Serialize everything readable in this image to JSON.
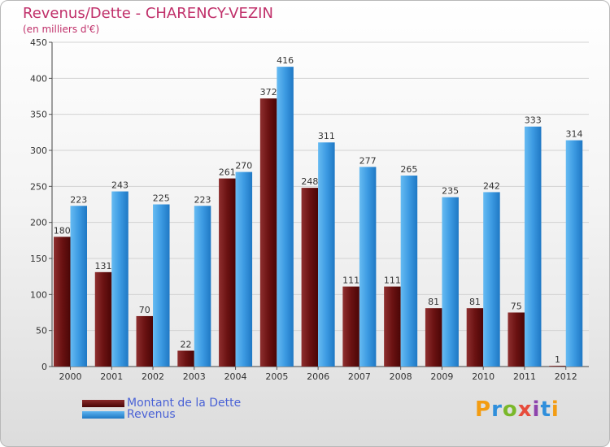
{
  "chart_data": {
    "type": "bar",
    "title": "Revenus/Dette - CHARENCY-VEZIN",
    "subtitle": "(en milliers d'€)",
    "categories": [
      "2000",
      "2001",
      "2002",
      "2003",
      "2004",
      "2005",
      "2006",
      "2007",
      "2008",
      "2009",
      "2010",
      "2011",
      "2012"
    ],
    "series": [
      {
        "name": "Montant de la Dette",
        "color": "#6b1212",
        "values": [
          180,
          131,
          70,
          22,
          261,
          372,
          248,
          111,
          111,
          81,
          81,
          75,
          1
        ]
      },
      {
        "name": "Revenus",
        "color": "#2f8fdc",
        "values": [
          223,
          243,
          225,
          223,
          270,
          416,
          311,
          277,
          265,
          235,
          242,
          333,
          314
        ]
      }
    ],
    "xlabel": "",
    "ylabel": "",
    "ylim": [
      0,
      450
    ],
    "yticks": [
      0,
      50,
      100,
      150,
      200,
      250,
      300,
      350,
      400,
      450
    ],
    "grid": true,
    "legend": "bottom-left"
  },
  "brand": {
    "name": "Proxiti",
    "letters": [
      "P",
      "r",
      "o",
      "x",
      "i",
      "t",
      "i"
    ],
    "colors": [
      "#f39c12",
      "#2f8fdc",
      "#7ab82a",
      "#e74c3c",
      "#8e44ad",
      "#2f8fdc",
      "#f39c12"
    ]
  }
}
